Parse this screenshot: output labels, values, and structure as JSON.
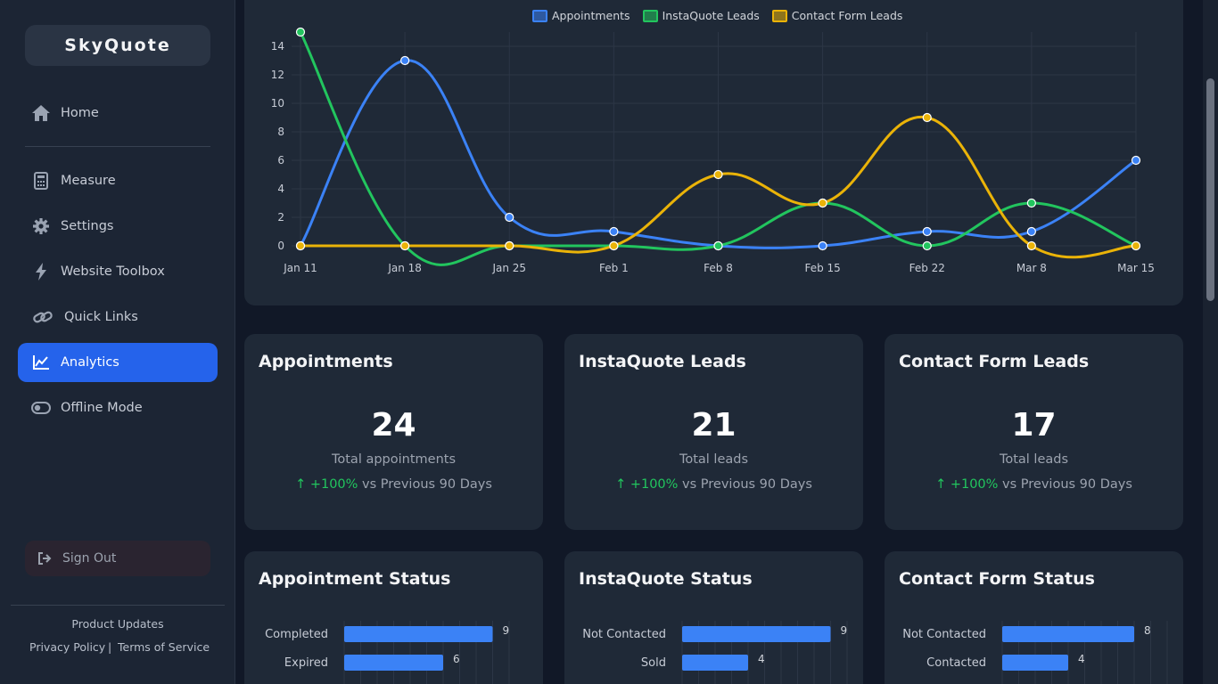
{
  "app": {
    "brand": "SkyQuote"
  },
  "sidebar": {
    "items": [
      {
        "label": "Home"
      },
      {
        "label": "Measure"
      },
      {
        "label": "Settings"
      },
      {
        "label": "Website Toolbox"
      },
      {
        "label": "Quick Links"
      },
      {
        "label": "Analytics"
      },
      {
        "label": "Offline Mode"
      }
    ],
    "signout": "Sign Out",
    "footer": {
      "updates": "Product Updates",
      "privacy": "Privacy Policy",
      "sep": "|",
      "terms": "Terms of Service"
    }
  },
  "colors": {
    "appointments": "#3b82f6",
    "instaquote": "#22c55e",
    "contact": "#eab308",
    "accent": "#2563eb"
  },
  "chart_data": {
    "type": "line",
    "x": [
      "Jan 11",
      "Jan 18",
      "Jan 25",
      "Feb 1",
      "Feb 8",
      "Feb 15",
      "Feb 22",
      "Mar 8",
      "Mar 15"
    ],
    "ylim": [
      0,
      15
    ],
    "yticks": [
      0,
      2,
      4,
      6,
      8,
      10,
      12,
      14
    ],
    "grid": true,
    "legend": "top",
    "series": [
      {
        "name": "Appointments",
        "color": "#3b82f6",
        "values": [
          0,
          13,
          2,
          1,
          0,
          0,
          1,
          1,
          6
        ]
      },
      {
        "name": "InstaQuote Leads",
        "color": "#22c55e",
        "values": [
          15,
          0,
          0,
          0,
          0,
          3,
          0,
          3,
          0
        ]
      },
      {
        "name": "Contact Form Leads",
        "color": "#eab308",
        "values": [
          0,
          0,
          0,
          0,
          5,
          3,
          9,
          0,
          0
        ]
      }
    ]
  },
  "stats": [
    {
      "title": "Appointments",
      "value": "24",
      "label": "Total appointments",
      "change": "+100%",
      "suffix": " vs Previous 90 Days"
    },
    {
      "title": "InstaQuote Leads",
      "value": "21",
      "label": "Total leads",
      "change": "+100%",
      "suffix": " vs Previous 90 Days"
    },
    {
      "title": "Contact Form Leads",
      "value": "17",
      "label": "Total leads",
      "change": "+100%",
      "suffix": " vs Previous 90 Days"
    }
  ],
  "status": [
    {
      "title": "Appointment Status",
      "max": 10,
      "rows": [
        {
          "label": "Completed",
          "value": 9
        },
        {
          "label": "Expired",
          "value": 6
        }
      ]
    },
    {
      "title": "InstaQuote Status",
      "max": 10,
      "rows": [
        {
          "label": "Not Contacted",
          "value": 9
        },
        {
          "label": "Sold",
          "value": 4
        }
      ]
    },
    {
      "title": "Contact Form Status",
      "max": 10,
      "rows": [
        {
          "label": "Not Contacted",
          "value": 8
        },
        {
          "label": "Contacted",
          "value": 4
        }
      ]
    }
  ]
}
